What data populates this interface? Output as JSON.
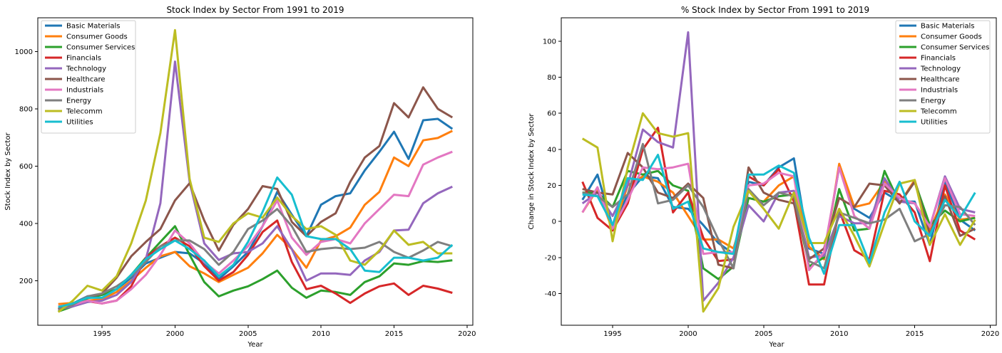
{
  "chart_data": [
    {
      "type": "line",
      "title": "Stock Index by Sector From 1991 to 2019",
      "xlabel": "Year",
      "ylabel": "Stock Index by Sector",
      "xlim": [
        1990.6,
        2020.4
      ],
      "ylim": [
        44,
        1118
      ],
      "xticks": [
        1995,
        2000,
        2005,
        2010,
        2015,
        2020
      ],
      "yticks": [
        200,
        400,
        600,
        800,
        1000
      ],
      "legend_position": "upper left",
      "grid": false,
      "x": [
        1992,
        1993,
        1994,
        1995,
        1996,
        1997,
        1998,
        1999,
        2000,
        2001,
        2002,
        2003,
        2004,
        2005,
        2006,
        2007,
        2008,
        2009,
        2010,
        2011,
        2012,
        2013,
        2014,
        2015,
        2016,
        2017,
        2018,
        2019
      ],
      "series": [
        {
          "name": "Basic Materials",
          "color": "#1f77b4",
          "values": [
            100,
            120,
            145,
            150,
            170,
            210,
            260,
            280,
            300,
            295,
            260,
            205,
            250,
            300,
            390,
            510,
            430,
            355,
            465,
            495,
            505,
            585,
            650,
            720,
            625,
            760,
            765,
            730
          ]
        },
        {
          "name": "Consumer Goods",
          "color": "#ff7f0e",
          "values": [
            118,
            122,
            130,
            135,
            160,
            200,
            245,
            285,
            300,
            250,
            225,
            195,
            220,
            245,
            295,
            360,
            310,
            245,
            340,
            355,
            385,
            465,
            510,
            630,
            600,
            690,
            698,
            723
          ]
        },
        {
          "name": "Consumer Services",
          "color": "#2ca02c",
          "values": [
            92,
            110,
            138,
            150,
            170,
            220,
            280,
            335,
            390,
            290,
            195,
            145,
            165,
            180,
            205,
            235,
            175,
            140,
            165,
            160,
            150,
            195,
            215,
            260,
            255,
            268,
            265,
            271
          ]
        },
        {
          "name": "Financials",
          "color": "#d62728",
          "values": [
            98,
            115,
            128,
            120,
            130,
            180,
            280,
            320,
            350,
            320,
            250,
            200,
            230,
            290,
            370,
            410,
            265,
            170,
            182,
            155,
            122,
            155,
            180,
            190,
            150,
            182,
            172,
            157
          ]
        },
        {
          "name": "Technology",
          "color": "#9467bd",
          "values": [
            100,
            110,
            125,
            130,
            150,
            195,
            275,
            470,
            965,
            545,
            330,
            272,
            295,
            300,
            330,
            390,
            310,
            200,
            225,
            225,
            220,
            270,
            300,
            375,
            378,
            470,
            505,
            528
          ]
        },
        {
          "name": "Healthcare",
          "color": "#8c564b",
          "values": [
            102,
            120,
            140,
            155,
            210,
            285,
            335,
            380,
            480,
            540,
            410,
            305,
            395,
            450,
            530,
            520,
            405,
            355,
            405,
            435,
            545,
            630,
            670,
            820,
            770,
            875,
            800,
            770
          ]
        },
        {
          "name": "Industrials",
          "color": "#e377c2",
          "values": [
            110,
            115,
            130,
            120,
            130,
            170,
            220,
            290,
            375,
            330,
            265,
            225,
            270,
            320,
            390,
            480,
            350,
            290,
            335,
            345,
            330,
            400,
            450,
            500,
            495,
            605,
            630,
            650
          ]
        },
        {
          "name": "Energy",
          "color": "#7f7f7f",
          "values": [
            98,
            115,
            145,
            155,
            180,
            215,
            265,
            320,
            340,
            340,
            310,
            255,
            300,
            380,
            410,
            450,
            390,
            300,
            310,
            315,
            310,
            315,
            335,
            300,
            280,
            305,
            335,
            320
          ]
        },
        {
          "name": "Telecomm",
          "color": "#bcbd22",
          "values": [
            90,
            130,
            182,
            165,
            215,
            330,
            480,
            715,
            1075,
            555,
            350,
            335,
            400,
            435,
            420,
            490,
            425,
            380,
            390,
            360,
            270,
            255,
            305,
            375,
            325,
            335,
            295,
            295
          ]
        },
        {
          "name": "Utilities",
          "color": "#17becf",
          "values": [
            108,
            120,
            140,
            140,
            170,
            220,
            275,
            310,
            340,
            310,
            270,
            215,
            255,
            335,
            440,
            560,
            500,
            355,
            345,
            345,
            310,
            235,
            230,
            280,
            280,
            270,
            280,
            325
          ]
        }
      ]
    },
    {
      "type": "line",
      "title": "% Stock Index by Sector From 1991 to 2019",
      "xlabel": "Year",
      "ylabel": "Change in Stock Index by Sector",
      "xlim": [
        1991.6,
        2020.4
      ],
      "ylim": [
        -57.6,
        113
      ],
      "xticks": [
        1995,
        2000,
        2005,
        2010,
        2015,
        2020
      ],
      "yticks": [
        -40,
        -20,
        0,
        20,
        40,
        60,
        80,
        100
      ],
      "legend_position": "upper right",
      "grid": false,
      "x": [
        1993,
        1994,
        1995,
        1996,
        1997,
        1998,
        1999,
        2000,
        2001,
        2002,
        2003,
        2004,
        2005,
        2006,
        2007,
        2008,
        2009,
        2010,
        2011,
        2012,
        2013,
        2014,
        2015,
        2016,
        2017,
        2018,
        2019
      ],
      "series": [
        {
          "name": "Basic Materials",
          "color": "#1f77b4",
          "values": [
            12,
            26,
            -3,
            15,
            25,
            24,
            8,
            7,
            -2,
            -12,
            -18,
            22,
            20,
            30,
            35,
            -15,
            -18,
            30,
            7,
            2,
            16,
            11,
            11,
            -13,
            22,
            1,
            -5
          ]
        },
        {
          "name": "Consumer Goods",
          "color": "#ff7f0e",
          "values": [
            5,
            18,
            -5,
            20,
            25,
            22,
            16,
            3,
            -10,
            -10,
            -15,
            13,
            11,
            20,
            25,
            -14,
            -21,
            32,
            8,
            10,
            22,
            10,
            23,
            -5,
            15,
            1,
            2
          ]
        },
        {
          "name": "Consumer Services",
          "color": "#2ca02c",
          "values": [
            16,
            16,
            8,
            28,
            26,
            28,
            20,
            17,
            -26,
            -32,
            -25,
            13,
            11,
            14,
            15,
            -25,
            -20,
            18,
            -5,
            -4,
            28,
            10,
            22,
            -2,
            6,
            0,
            2
          ]
        },
        {
          "name": "Financials",
          "color": "#d62728",
          "values": [
            22,
            2,
            -5,
            10,
            40,
            52,
            5,
            16,
            -9,
            -22,
            -21,
            25,
            20,
            29,
            11,
            -35,
            -35,
            6,
            -16,
            -21,
            17,
            15,
            5,
            -22,
            20,
            -5,
            -10
          ]
        },
        {
          "name": "Technology",
          "color": "#9467bd",
          "values": [
            10,
            16,
            3,
            20,
            51,
            44,
            41,
            105,
            -44,
            -34,
            -20,
            9,
            0,
            16,
            17,
            -20,
            -19,
            3,
            -1,
            -1,
            24,
            11,
            10,
            -3,
            25,
            7,
            5
          ]
        },
        {
          "name": "Healthcare",
          "color": "#8c564b",
          "values": [
            18,
            16,
            15,
            38,
            30,
            16,
            13,
            21,
            13,
            -24,
            -26,
            30,
            16,
            12,
            10,
            -21,
            -15,
            13,
            8,
            21,
            20,
            10,
            22,
            -7,
            14,
            -8,
            -4
          ]
        },
        {
          "name": "Industrials",
          "color": "#e377c2",
          "values": [
            5,
            19,
            -4,
            12,
            30,
            29,
            30,
            32,
            -18,
            -17,
            -17,
            20,
            21,
            27,
            25,
            -27,
            -17,
            30,
            3,
            -4,
            21,
            13,
            10,
            -3,
            24,
            4,
            3
          ]
        },
        {
          "name": "Energy",
          "color": "#7f7f7f",
          "values": [
            16,
            14,
            8,
            15,
            43,
            10,
            12,
            20,
            8,
            -10,
            -26,
            18,
            9,
            16,
            14,
            -22,
            -26,
            5,
            2,
            -1,
            1,
            7,
            -11,
            -7,
            9,
            8,
            -2
          ]
        },
        {
          "name": "Telecomm",
          "color": "#bcbd22",
          "values": [
            46,
            41,
            -11,
            30,
            60,
            49,
            47,
            49,
            -50,
            -37,
            -3,
            17,
            7,
            -4,
            16,
            -12,
            -12,
            7,
            -8,
            -25,
            -1,
            21,
            23,
            -13,
            4,
            -13,
            1
          ]
        },
        {
          "name": "Utilities",
          "color": "#17becf",
          "values": [
            15,
            14,
            -2,
            24,
            23,
            37,
            7,
            11,
            -15,
            -17,
            -18,
            26,
            26,
            31,
            27,
            -9,
            -29,
            -2,
            -2,
            -23,
            5,
            22,
            0,
            -8,
            12,
            2,
            16
          ]
        }
      ]
    }
  ]
}
